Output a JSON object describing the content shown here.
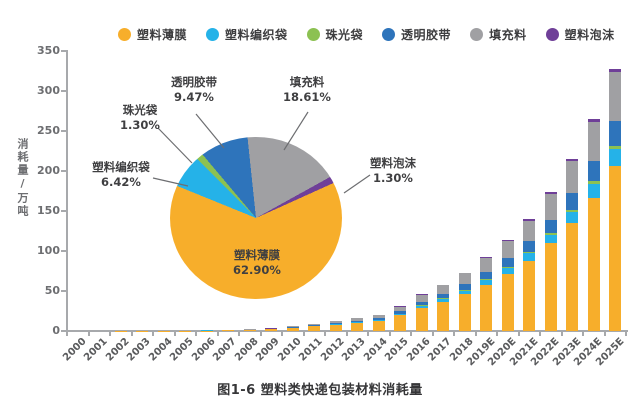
{
  "figure": {
    "caption": "图1-6 塑料类快递包装材料消耗量",
    "background": "#FFFFFF"
  },
  "legend": {
    "position": "top",
    "items": [
      {
        "label": "塑料薄膜",
        "color": "#F7AE2B"
      },
      {
        "label": "塑料编织袋",
        "color": "#25B2E8"
      },
      {
        "label": "珠光袋",
        "color": "#8CC152"
      },
      {
        "label": "透明胶带",
        "color": "#2E74BB"
      },
      {
        "label": "填充料",
        "color": "#A0A0A3"
      },
      {
        "label": "塑料泡沫",
        "color": "#6F3F98"
      }
    ]
  },
  "chart_data": [
    {
      "type": "bar",
      "stacked": true,
      "title": "图1-6 塑料类快递包装材料消耗量",
      "xlabel": "",
      "ylabel": "消耗量/万吨",
      "ylim": [
        0,
        350
      ],
      "y_ticks": [
        0,
        50,
        100,
        150,
        200,
        250,
        300,
        350
      ],
      "grid": false,
      "legend_position": "top",
      "categories": [
        "2000",
        "2001",
        "2002",
        "2003",
        "2004",
        "2005",
        "2006",
        "2007",
        "2008",
        "2009",
        "2010",
        "2011",
        "2012",
        "2013",
        "2014",
        "2015",
        "2016",
        "2017",
        "2018",
        "2019E",
        "2020E",
        "2021E",
        "2022E",
        "2023E",
        "2024E",
        "2025E"
      ],
      "totals": [
        0.1,
        0.15,
        0.2,
        0.3,
        0.45,
        0.65,
        1,
        1.5,
        2.2,
        3.2,
        6,
        9,
        12.5,
        16,
        20,
        31,
        46,
        58,
        73,
        92,
        114,
        140,
        174,
        215,
        265,
        328
      ],
      "series": [
        {
          "name": "塑料薄膜",
          "color": "#F7AE2B",
          "values": [
            0.06,
            0.09,
            0.13,
            0.19,
            0.28,
            0.41,
            0.63,
            0.94,
            1.38,
            2.01,
            3.77,
            5.66,
            7.86,
            10.06,
            12.58,
            19.5,
            28.93,
            36.48,
            45.92,
            57.87,
            71.71,
            88.06,
            109.45,
            135.24,
            166.69,
            206.31
          ]
        },
        {
          "name": "塑料编织袋",
          "color": "#25B2E8",
          "values": [
            0.01,
            0.01,
            0.01,
            0.02,
            0.03,
            0.04,
            0.06,
            0.1,
            0.14,
            0.21,
            0.39,
            0.58,
            0.8,
            1.03,
            1.28,
            1.99,
            2.95,
            3.72,
            4.69,
            5.91,
            7.32,
            8.99,
            11.17,
            13.8,
            17.01,
            21.06
          ]
        },
        {
          "name": "珠光袋",
          "color": "#8CC152",
          "values": [
            0,
            0,
            0,
            0,
            0.01,
            0.01,
            0.01,
            0.02,
            0.03,
            0.04,
            0.08,
            0.12,
            0.16,
            0.21,
            0.26,
            0.4,
            0.6,
            0.75,
            0.95,
            1.2,
            1.48,
            1.82,
            2.26,
            2.8,
            3.45,
            4.26
          ]
        },
        {
          "name": "透明胶带",
          "color": "#2E74BB",
          "values": [
            0.01,
            0.01,
            0.02,
            0.03,
            0.04,
            0.06,
            0.09,
            0.14,
            0.21,
            0.3,
            0.57,
            0.85,
            1.18,
            1.52,
            1.89,
            2.94,
            4.36,
            5.49,
            6.91,
            8.71,
            10.8,
            13.26,
            16.48,
            20.36,
            25.1,
            31.06
          ]
        },
        {
          "name": "填充料",
          "color": "#A0A0A3",
          "values": [
            0.02,
            0.03,
            0.04,
            0.06,
            0.08,
            0.12,
            0.19,
            0.28,
            0.41,
            0.6,
            1.12,
            1.67,
            2.33,
            2.98,
            3.72,
            5.77,
            8.56,
            10.79,
            13.59,
            17.12,
            21.22,
            26.05,
            32.38,
            40.01,
            49.32,
            61.04
          ]
        },
        {
          "name": "塑料泡沫",
          "color": "#6F3F98",
          "values": [
            0,
            0,
            0,
            0,
            0.01,
            0.01,
            0.01,
            0.02,
            0.03,
            0.04,
            0.08,
            0.12,
            0.16,
            0.21,
            0.26,
            0.4,
            0.6,
            0.75,
            0.95,
            1.2,
            1.48,
            1.82,
            2.26,
            2.8,
            3.45,
            4.26
          ]
        }
      ]
    },
    {
      "type": "pie",
      "start_angle_deg": -6,
      "slices": [
        {
          "label": "填充料",
          "pct": 18.61,
          "pct_label": "18.61%",
          "color": "#A0A0A3"
        },
        {
          "label": "塑料泡沫",
          "pct": 1.3,
          "pct_label": "1.30%",
          "color": "#6F3F98"
        },
        {
          "label": "塑料薄膜",
          "pct": 62.9,
          "pct_label": "62.90%",
          "color": "#F7AE2B"
        },
        {
          "label": "塑料编织袋",
          "pct": 6.42,
          "pct_label": "6.42%",
          "color": "#25B2E8"
        },
        {
          "label": "珠光袋",
          "pct": 1.3,
          "pct_label": "1.30%",
          "color": "#8CC152"
        },
        {
          "label": "透明胶带",
          "pct": 9.47,
          "pct_label": "9.47%",
          "color": "#2E74BB"
        }
      ]
    }
  ]
}
